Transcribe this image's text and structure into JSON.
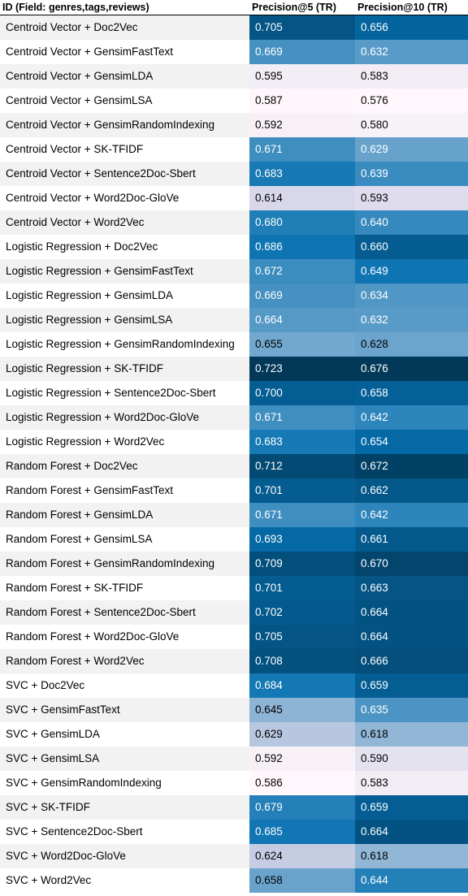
{
  "chart_data": {
    "type": "table",
    "columns": [
      "ID (Field: genres,tags,reviews)",
      "Precision@5 (TR)",
      "Precision@10 (TR)"
    ],
    "rows": [
      [
        "Centroid Vector + Doc2Vec",
        "0.705",
        "0.656"
      ],
      [
        "Centroid Vector + GensimFastText",
        "0.669",
        "0.632"
      ],
      [
        "Centroid Vector + GensimLDA",
        "0.595",
        "0.583"
      ],
      [
        "Centroid Vector + GensimLSA",
        "0.587",
        "0.576"
      ],
      [
        "Centroid Vector + GensimRandomIndexing",
        "0.592",
        "0.580"
      ],
      [
        "Centroid Vector + SK-TFIDF",
        "0.671",
        "0.629"
      ],
      [
        "Centroid Vector + Sentence2Doc-Sbert",
        "0.683",
        "0.639"
      ],
      [
        "Centroid Vector + Word2Doc-GloVe",
        "0.614",
        "0.593"
      ],
      [
        "Centroid Vector + Word2Vec",
        "0.680",
        "0.640"
      ],
      [
        "Logistic Regression + Doc2Vec",
        "0.686",
        "0.660"
      ],
      [
        "Logistic Regression + GensimFastText",
        "0.672",
        "0.649"
      ],
      [
        "Logistic Regression + GensimLDA",
        "0.669",
        "0.634"
      ],
      [
        "Logistic Regression + GensimLSA",
        "0.664",
        "0.632"
      ],
      [
        "Logistic Regression + GensimRandomIndexing",
        "0.655",
        "0.628"
      ],
      [
        "Logistic Regression + SK-TFIDF",
        "0.723",
        "0.676"
      ],
      [
        "Logistic Regression + Sentence2Doc-Sbert",
        "0.700",
        "0.658"
      ],
      [
        "Logistic Regression + Word2Doc-GloVe",
        "0.671",
        "0.642"
      ],
      [
        "Logistic Regression + Word2Vec",
        "0.683",
        "0.654"
      ],
      [
        "Random Forest + Doc2Vec",
        "0.712",
        "0.672"
      ],
      [
        "Random Forest + GensimFastText",
        "0.701",
        "0.662"
      ],
      [
        "Random Forest + GensimLDA",
        "0.671",
        "0.642"
      ],
      [
        "Random Forest + GensimLSA",
        "0.693",
        "0.661"
      ],
      [
        "Random Forest + GensimRandomIndexing",
        "0.709",
        "0.670"
      ],
      [
        "Random Forest + SK-TFIDF",
        "0.701",
        "0.663"
      ],
      [
        "Random Forest + Sentence2Doc-Sbert",
        "0.702",
        "0.664"
      ],
      [
        "Random Forest + Word2Doc-GloVe",
        "0.705",
        "0.664"
      ],
      [
        "Random Forest + Word2Vec",
        "0.708",
        "0.666"
      ],
      [
        "SVC + Doc2Vec",
        "0.684",
        "0.659"
      ],
      [
        "SVC + GensimFastText",
        "0.645",
        "0.635"
      ],
      [
        "SVC + GensimLDA",
        "0.629",
        "0.618"
      ],
      [
        "SVC + GensimLSA",
        "0.592",
        "0.590"
      ],
      [
        "SVC + GensimRandomIndexing",
        "0.586",
        "0.583"
      ],
      [
        "SVC + SK-TFIDF",
        "0.679",
        "0.659"
      ],
      [
        "SVC + Sentence2Doc-Sbert",
        "0.685",
        "0.664"
      ],
      [
        "SVC + Word2Doc-GloVe",
        "0.624",
        "0.618"
      ],
      [
        "SVC + Word2Vec",
        "0.658",
        "0.644"
      ]
    ],
    "colormap": {
      "low": "#fff7fb",
      "mid_low": "#d0d1e6",
      "mid": "#74a9cf",
      "mid_high": "#0570b0",
      "high": "#023858"
    }
  }
}
